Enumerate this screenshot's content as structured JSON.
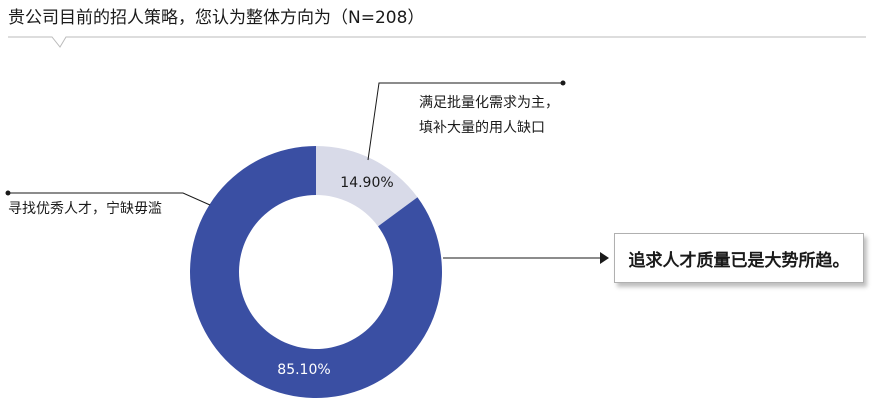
{
  "title": "贵公司目前的招人策略，您认为整体方向为（N=208）",
  "chart_data": {
    "type": "pie",
    "variant": "donut",
    "title": "贵公司目前的招人策略，您认为整体方向为（N=208）",
    "slices": [
      {
        "label_lines": [
          "满足批量化需求为主，",
          "填补大量的用人缺口"
        ],
        "value": 14.9,
        "value_label": "14.90%",
        "color": "#d8dae8",
        "text_color": "#1a1a1a"
      },
      {
        "label_lines": [
          "寻找优秀人才，宁缺毋滥"
        ],
        "value": 85.1,
        "value_label": "85.10%",
        "color": "#3a4fa3",
        "text_color": "#ffffff"
      }
    ],
    "legend": "none"
  },
  "callout": {
    "text": "追求人才质量已是大势所趋。"
  },
  "colors": {
    "line": "#1a1a1a",
    "header_rule": "#bbbbbb"
  }
}
